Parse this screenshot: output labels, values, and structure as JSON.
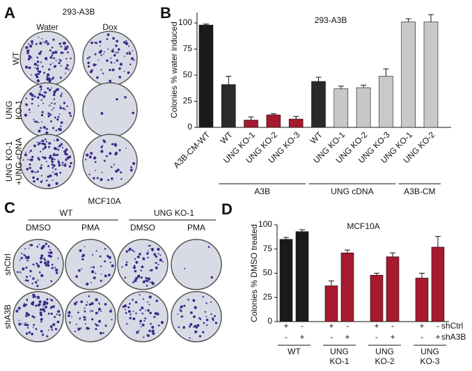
{
  "panel_a": {
    "letter": "A",
    "title": "293-A3B",
    "columns": [
      "Water",
      "Dox"
    ],
    "rows": [
      [
        "WT"
      ],
      [
        "UNG",
        "KO-1"
      ],
      [
        "UNG KO-1",
        "+UNG cDNA"
      ]
    ]
  },
  "panel_c": {
    "letter": "C",
    "title": "MCF10A",
    "groups": [
      "WT",
      "UNG KO-1"
    ],
    "columns": [
      "DMSO",
      "PMA",
      "DMSO",
      "PMA"
    ],
    "rows": [
      "shCtrl",
      "shA3B"
    ]
  },
  "chart_data": [
    {
      "type": "bar",
      "letter": "B",
      "title": "293-A3B",
      "ylabel": "Colonies % water induced",
      "categories": [
        "A3B-CM-WT",
        "WT",
        "UNG KO-1",
        "UNG KO-2",
        "UNG KO-3",
        "WT",
        "UNG KO-1",
        "UNG KO-2",
        "UNG KO-3",
        "UNG KO-1",
        "UNG KO-2"
      ],
      "values": [
        98,
        41,
        7,
        12,
        8,
        44,
        37,
        38,
        49,
        101,
        101
      ],
      "errors": [
        1,
        8,
        3,
        1,
        2.5,
        4,
        2.5,
        2.5,
        7,
        3,
        7
      ],
      "colors": [
        "#1a1a1a",
        "#2a2a2a",
        "#a6192e",
        "#a6192e",
        "#a6192e",
        "#2a2a2a",
        "#c8c8c8",
        "#c8c8c8",
        "#c8c8c8",
        "#c8c8c8",
        "#c8c8c8"
      ],
      "groups": [
        "A3B",
        "UNG cDNA",
        "A3B-CM"
      ],
      "ylim": [
        0,
        110
      ],
      "yticks": [
        0,
        25,
        50,
        75,
        100
      ]
    },
    {
      "type": "bar",
      "letter": "D",
      "title": "MCF10A",
      "ylabel": "Colonies % DMSO treated",
      "values": [
        85,
        93,
        37,
        71,
        48,
        67,
        45,
        77
      ],
      "errors": [
        2,
        2,
        5,
        3,
        2,
        4,
        5,
        11
      ],
      "colors": [
        "#1a1a1a",
        "#1a1a1a",
        "#a6192e",
        "#a6192e",
        "#a6192e",
        "#a6192e",
        "#a6192e",
        "#a6192e"
      ],
      "conditions": [
        {
          "name": "shCtrl",
          "signs": [
            "+",
            "-",
            "+",
            "-",
            "+",
            "-",
            "+",
            "-"
          ]
        },
        {
          "name": "shA3B",
          "signs": [
            "-",
            "+",
            "-",
            "+",
            "-",
            "+",
            "-",
            "+"
          ]
        }
      ],
      "groups": [
        [
          "WT"
        ],
        [
          "UNG",
          "KO-1"
        ],
        [
          "UNG",
          "KO-2"
        ],
        [
          "UNG",
          "KO-3"
        ]
      ],
      "ylim": [
        0,
        100
      ],
      "yticks": [
        0,
        25,
        50,
        75,
        100
      ]
    }
  ]
}
